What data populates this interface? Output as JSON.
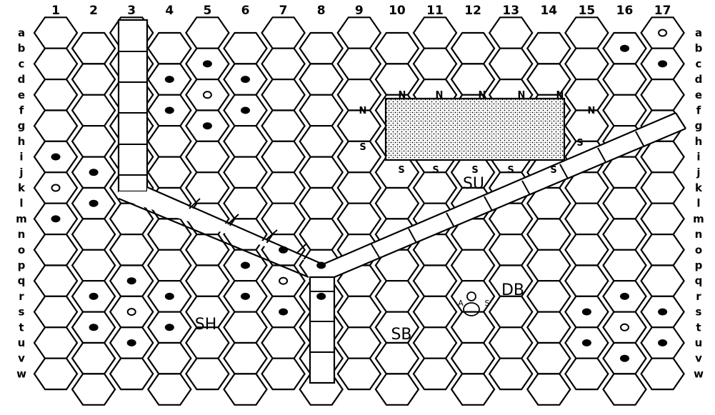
{
  "board": {
    "columns": [
      "1",
      "2",
      "3",
      "4",
      "5",
      "6",
      "7",
      "8",
      "9",
      "10",
      "11",
      "12",
      "13",
      "14",
      "15",
      "16",
      "17"
    ],
    "rows": [
      "a",
      "b",
      "c",
      "d",
      "e",
      "f",
      "g",
      "h",
      "i",
      "j",
      "k",
      "l",
      "m",
      "n",
      "o",
      "p",
      "q",
      "r",
      "s",
      "t",
      "u",
      "v",
      "w"
    ]
  },
  "labels": {
    "north": "N",
    "south": "S",
    "zone_su": "SU",
    "zone_sh": "SH",
    "zone_sb": "SB",
    "zone_db": "DB",
    "a_marker": "A",
    "s_marker": "S"
  },
  "colors": {
    "ink": "#000000",
    "paper": "#ffffff"
  },
  "markers": [
    {
      "col": 17,
      "row": "a",
      "kind": "open"
    },
    {
      "col": 16,
      "row": "b",
      "kind": "solid"
    },
    {
      "col": 17,
      "row": "c",
      "kind": "solid"
    },
    {
      "col": 5,
      "row": "c",
      "kind": "solid"
    },
    {
      "col": 4,
      "row": "d",
      "kind": "solid"
    },
    {
      "col": 6,
      "row": "d",
      "kind": "solid"
    },
    {
      "col": 5,
      "row": "e",
      "kind": "open"
    },
    {
      "col": 4,
      "row": "f",
      "kind": "solid"
    },
    {
      "col": 6,
      "row": "f",
      "kind": "solid"
    },
    {
      "col": 5,
      "row": "g",
      "kind": "solid"
    },
    {
      "col": 1,
      "row": "i",
      "kind": "solid"
    },
    {
      "col": 2,
      "row": "j",
      "kind": "solid"
    },
    {
      "col": 1,
      "row": "k",
      "kind": "open"
    },
    {
      "col": 2,
      "row": "l",
      "kind": "solid"
    },
    {
      "col": 1,
      "row": "m",
      "kind": "solid"
    },
    {
      "col": 7,
      "row": "o",
      "kind": "solid"
    },
    {
      "col": 6,
      "row": "p",
      "kind": "solid"
    },
    {
      "col": 8,
      "row": "p",
      "kind": "solid"
    },
    {
      "col": 3,
      "row": "q",
      "kind": "solid"
    },
    {
      "col": 7,
      "row": "q",
      "kind": "open"
    },
    {
      "col": 2,
      "row": "r",
      "kind": "solid"
    },
    {
      "col": 4,
      "row": "r",
      "kind": "solid"
    },
    {
      "col": 6,
      "row": "r",
      "kind": "solid"
    },
    {
      "col": 8,
      "row": "r",
      "kind": "solid"
    },
    {
      "col": 3,
      "row": "s",
      "kind": "open"
    },
    {
      "col": 7,
      "row": "s",
      "kind": "solid"
    },
    {
      "col": 2,
      "row": "t",
      "kind": "solid"
    },
    {
      "col": 4,
      "row": "t",
      "kind": "solid"
    },
    {
      "col": 3,
      "row": "u",
      "kind": "solid"
    },
    {
      "col": 16,
      "row": "r",
      "kind": "solid"
    },
    {
      "col": 15,
      "row": "s",
      "kind": "solid"
    },
    {
      "col": 17,
      "row": "s",
      "kind": "solid"
    },
    {
      "col": 16,
      "row": "t",
      "kind": "open"
    },
    {
      "col": 15,
      "row": "u",
      "kind": "solid"
    },
    {
      "col": 17,
      "row": "u",
      "kind": "solid"
    },
    {
      "col": 16,
      "row": "v",
      "kind": "solid"
    }
  ]
}
